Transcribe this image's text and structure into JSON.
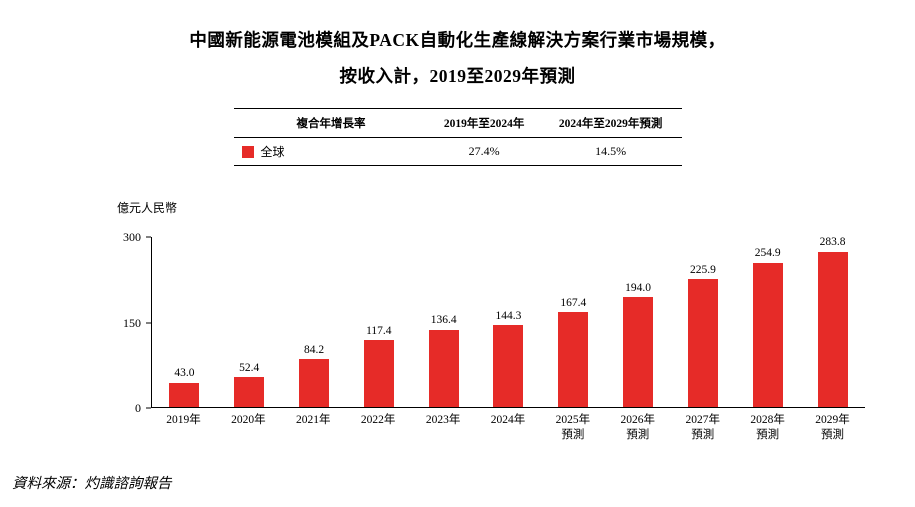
{
  "title": {
    "line1": "中國新能源電池模組及PACK自動化生產線解決方案行業市場規模，",
    "line2": "按收入計，2019至2029年預測"
  },
  "cagr_table": {
    "headers": [
      "複合年增長率",
      "2019年至2024年",
      "2024年至2029年預測"
    ],
    "rows": [
      {
        "legend_color": "#e62b28",
        "label": "全球",
        "values": [
          "27.4%",
          "14.5%"
        ]
      }
    ]
  },
  "chart_data": {
    "type": "bar",
    "title": "中國新能源電池模組及PACK自動化生產線解決方案行業市場規模，按收入計，2019至2029年預測",
    "ylabel": "億元人民幣",
    "xlabel": "",
    "categories": [
      "2019年",
      "2020年",
      "2021年",
      "2022年",
      "2023年",
      "2024年",
      "2025年\n預測",
      "2026年\n預測",
      "2027年\n預測",
      "2028年\n預測",
      "2029年\n預測"
    ],
    "values": [
      43.0,
      52.4,
      84.2,
      117.4,
      136.4,
      144.3,
      167.4,
      194.0,
      225.9,
      254.9,
      283.8
    ],
    "series_name": "全球",
    "ylim": [
      0,
      300
    ],
    "yticks": [
      0,
      150,
      300
    ],
    "bar_color": "#e62b28",
    "grid": false,
    "legend_position": "table-top-left"
  },
  "source": "資料來源：灼識諮詢報告"
}
